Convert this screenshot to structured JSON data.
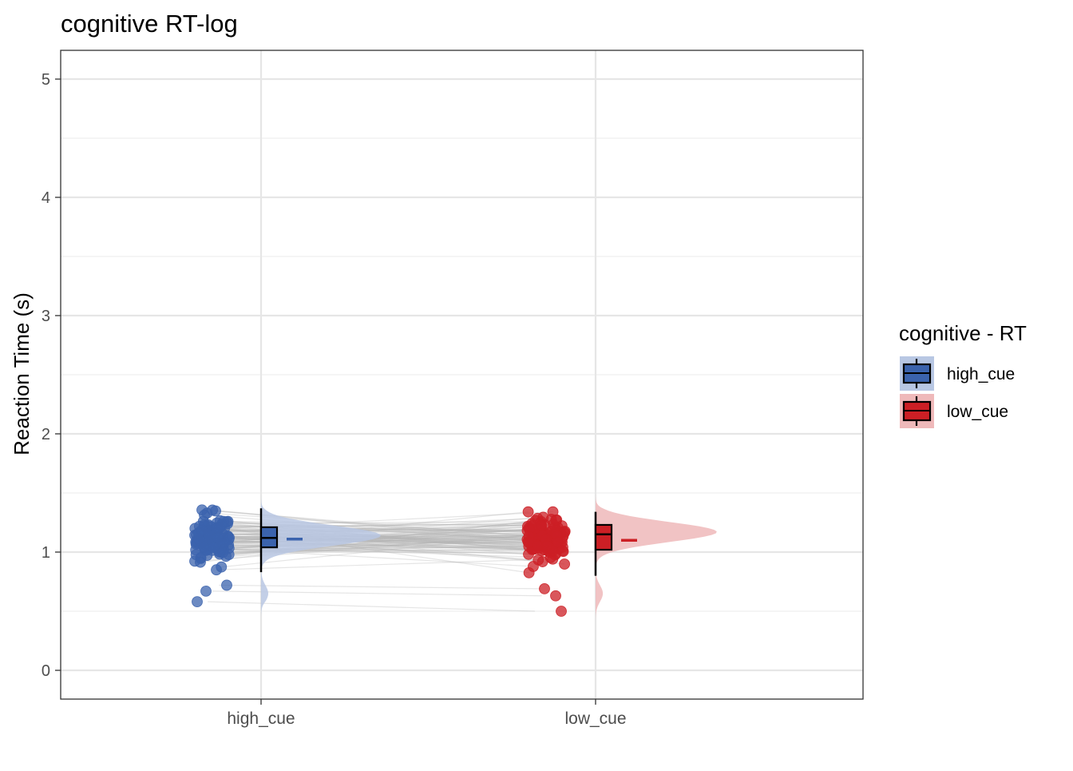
{
  "chart_data": {
    "type": "raincloud",
    "title": "cognitive RT-log",
    "xlabel": "",
    "ylabel": "Reaction Time (s)",
    "ylim": [
      -0.25,
      5.25
    ],
    "yticks": [
      "0",
      "1",
      "2",
      "3",
      "4",
      "5"
    ],
    "categories": [
      "high_cue",
      "low_cue"
    ],
    "grid": true,
    "legend": {
      "title": "cognitive  - RT",
      "position": "right",
      "entries": [
        "high_cue",
        "low_cue"
      ]
    },
    "series": [
      {
        "name": "high_cue",
        "color": "#3b63ad",
        "fill": "#b8c7e3",
        "box": {
          "whisker_low": 0.83,
          "q1": 1.04,
          "median": 1.12,
          "q3": 1.21,
          "whisker_high": 1.37
        },
        "mean": 1.11,
        "density_range": [
          0.44,
          1.51
        ],
        "density_peak": 1.14,
        "outliers": [
          0.58,
          0.67,
          0.72
        ]
      },
      {
        "name": "low_cue",
        "color": "#cc1f25",
        "fill": "#efb9ba",
        "box": {
          "whisker_low": 0.8,
          "q1": 1.02,
          "median": 1.15,
          "q3": 1.23,
          "whisker_high": 1.34
        },
        "mean": 1.1,
        "density_range": [
          0.34,
          1.51
        ],
        "density_peak": 1.17,
        "outliers": [
          0.5,
          0.63,
          0.69
        ]
      }
    ]
  }
}
